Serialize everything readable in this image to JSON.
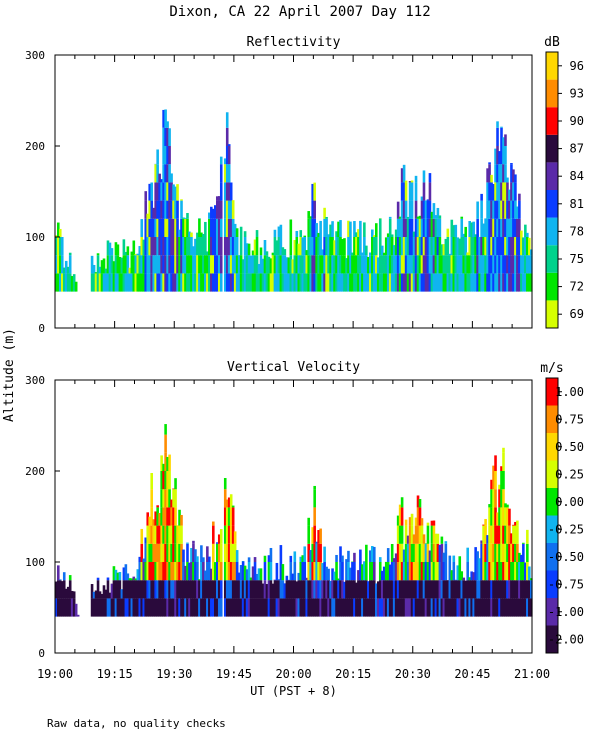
{
  "page": {
    "title": "Dixon, CA 22 April 2007  Day 112",
    "footnote": "Raw data, no quality checks",
    "shared_ylabel": "Altitude (m)",
    "shared_xlabel": "UT  (PST + 8)"
  },
  "chart_data": [
    {
      "type": "heatmap",
      "title": "Reflectivity",
      "ylabel": "Altitude (m)",
      "ylim": [
        0,
        300
      ],
      "yticks": [
        "0",
        "100",
        "200",
        "300"
      ],
      "xlim_minutes_since_1900": [
        0,
        120
      ],
      "colorbar": {
        "unit": "dB",
        "labels": [
          "69",
          "72",
          "75",
          "78",
          "81",
          "84",
          "87",
          "90",
          "93",
          "96"
        ],
        "colors": [
          "#d6ff00",
          "#00e600",
          "#00d28c",
          "#10b4f0",
          "#0a3cff",
          "#5a2aa8",
          "#2a0a3c",
          "#ff0000",
          "#ff8c00",
          "#ffd700"
        ]
      }
    },
    {
      "type": "heatmap",
      "title": "Vertical Velocity",
      "ylabel": "Altitude (m)",
      "ylim": [
        0,
        300
      ],
      "yticks": [
        "0",
        "100",
        "200",
        "300"
      ],
      "xlabel": "UT  (PST + 8)",
      "xticks": [
        "19:00",
        "19:15",
        "19:30",
        "19:45",
        "20:00",
        "20:15",
        "20:30",
        "20:45",
        "21:00"
      ],
      "xlim_minutes_since_1900": [
        0,
        120
      ],
      "colorbar": {
        "unit": "m/s",
        "labels": [
          "-2.00",
          "-1.00",
          "-0.75",
          "-0.50",
          "-0.25",
          "0.00",
          "0.25",
          "0.50",
          "0.75",
          "1.00"
        ],
        "colors": [
          "#2a0a3c",
          "#5a2aa8",
          "#0a3cff",
          "#1070f0",
          "#10b4f0",
          "#00e600",
          "#d6ff00",
          "#ffd700",
          "#ff8c00",
          "#ff0000"
        ]
      }
    }
  ]
}
